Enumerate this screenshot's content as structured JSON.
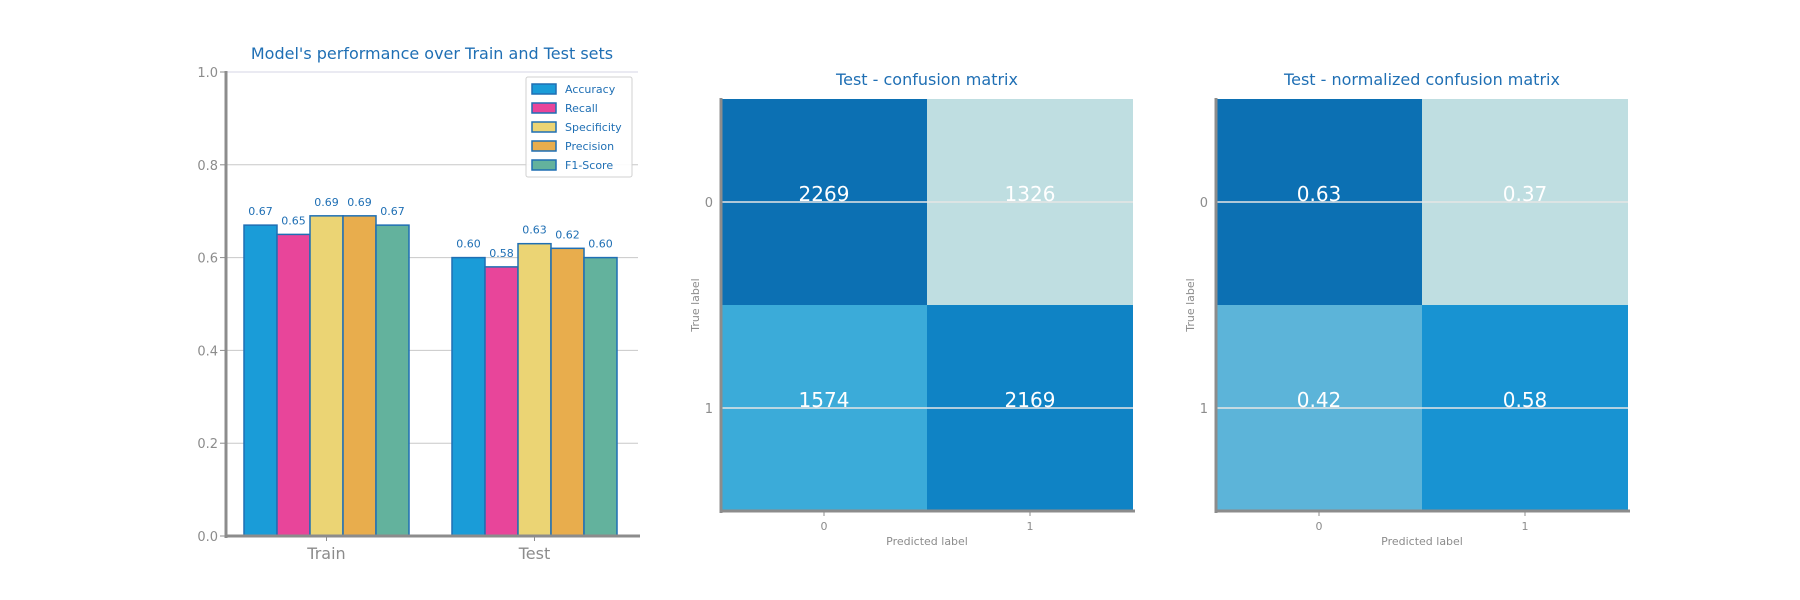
{
  "chart_data": [
    {
      "type": "bar",
      "title": "Model's performance over Train and Test sets",
      "categories": [
        "Train",
        "Test"
      ],
      "series": [
        {
          "name": "Accuracy",
          "values": [
            0.67,
            0.6
          ],
          "color": "#1a9cd8"
        },
        {
          "name": "Recall",
          "values": [
            0.65,
            0.58
          ],
          "color": "#e8459a"
        },
        {
          "name": "Specificity",
          "values": [
            0.69,
            0.63
          ],
          "color": "#ebd474"
        },
        {
          "name": "Precision",
          "values": [
            0.69,
            0.62
          ],
          "color": "#e8ad4d"
        },
        {
          "name": "F1-Score",
          "values": [
            0.67,
            0.6
          ],
          "color": "#63b29d"
        }
      ],
      "value_labels": [
        [
          "0.67",
          "0.60"
        ],
        [
          "0.65",
          "0.58"
        ],
        [
          "0.69",
          "0.63"
        ],
        [
          "0.69",
          "0.62"
        ],
        [
          "0.67",
          "0.60"
        ]
      ],
      "ylim": [
        0,
        1.0
      ],
      "yticks": [
        "0.0",
        "0.2",
        "0.4",
        "0.6",
        "0.8",
        "1.0"
      ],
      "xlabel": "",
      "ylabel": "",
      "grid": true,
      "legend": "top-right",
      "bar_edge_color": "#1f6fb4"
    },
    {
      "type": "heatmap",
      "title": "Test - confusion matrix",
      "xlabel": "Predicted label",
      "ylabel": "True label",
      "xticks": [
        "0",
        "1"
      ],
      "yticks": [
        "0",
        "1"
      ],
      "values": [
        [
          2269,
          1326
        ],
        [
          1574,
          2169
        ]
      ],
      "labels": [
        [
          "2269",
          "1326"
        ],
        [
          "1574",
          "2169"
        ]
      ],
      "colors": [
        [
          "#0c70b3",
          "#bfdee1"
        ],
        [
          "#3babd9",
          "#0f83c5"
        ]
      ]
    },
    {
      "type": "heatmap",
      "title": "Test - normalized confusion matrix",
      "xlabel": "Predicted label",
      "ylabel": "True label",
      "xticks": [
        "0",
        "1"
      ],
      "yticks": [
        "0",
        "1"
      ],
      "values": [
        [
          0.63,
          0.37
        ],
        [
          0.42,
          0.58
        ]
      ],
      "labels": [
        [
          "0.63",
          "0.37"
        ],
        [
          "0.42",
          "0.58"
        ]
      ],
      "colors": [
        [
          "#0c70b3",
          "#bfdee1"
        ],
        [
          "#5cb4d9",
          "#1893d2"
        ]
      ]
    }
  ]
}
